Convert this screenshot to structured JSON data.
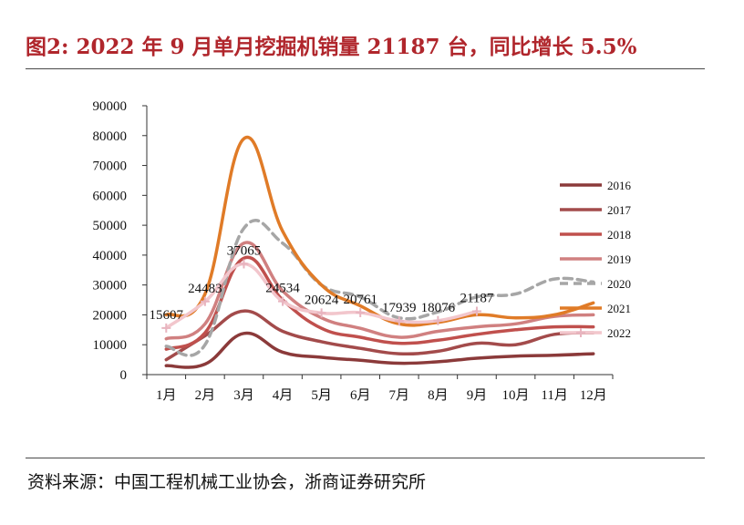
{
  "header": {
    "title": "图2:   2022 年 9 月单月挖掘机销量 21187 台，同比增长 5.5%"
  },
  "footer": {
    "source": "资料来源：中国工程机械工业协会，浙商证券研究所"
  },
  "chart_data": {
    "type": "line",
    "title": "2022 年 9 月单月挖掘机销量 21187 台，同比增长 5.5%",
    "xlabel": "",
    "ylabel": "",
    "ylim": [
      0,
      90000
    ],
    "yticks": [
      0,
      10000,
      20000,
      30000,
      40000,
      50000,
      60000,
      70000,
      80000,
      90000
    ],
    "categories": [
      "1月",
      "2月",
      "3月",
      "4月",
      "5月",
      "6月",
      "7月",
      "8月",
      "9月",
      "10月",
      "11月",
      "12月"
    ],
    "legend_position": "right",
    "series": [
      {
        "name": "2016",
        "color": "#8b3a3a",
        "dash": false,
        "marker": "none",
        "values": [
          3000,
          3500,
          13800,
          7500,
          5800,
          4800,
          3800,
          4300,
          5500,
          6200,
          6500,
          7000
        ]
      },
      {
        "name": "2017",
        "color": "#a34b4b",
        "dash": false,
        "marker": "none",
        "values": [
          5000,
          13000,
          21300,
          14500,
          11000,
          8800,
          7000,
          7800,
          10500,
          10000,
          13500,
          14000
        ]
      },
      {
        "name": "2018",
        "color": "#c0504d",
        "dash": false,
        "marker": "none",
        "values": [
          8500,
          14000,
          39000,
          25000,
          15500,
          12500,
          10500,
          11500,
          13500,
          15000,
          16000,
          16000
        ]
      },
      {
        "name": "2019",
        "color": "#d08080",
        "dash": false,
        "marker": "none",
        "values": [
          12000,
          17000,
          44000,
          28000,
          19000,
          15500,
          12500,
          14500,
          16000,
          17000,
          19500,
          20000
        ]
      },
      {
        "name": "2020",
        "color": "#a6a6a6",
        "dash": true,
        "marker": "none",
        "values": [
          9500,
          10000,
          49000,
          44000,
          30000,
          26000,
          19000,
          21000,
          26000,
          27000,
          32000,
          31000
        ]
      },
      {
        "name": "2021",
        "color": "#e07b27",
        "dash": false,
        "marker": "none",
        "values": [
          20000,
          27000,
          79000,
          48000,
          30000,
          23000,
          17000,
          17500,
          20000,
          19000,
          20000,
          24000
        ]
      },
      {
        "name": "2022",
        "color": "#f2c6cc",
        "dash": false,
        "marker": "plus",
        "marker_color": "#e8b4bf",
        "values": [
          15607,
          24483,
          37065,
          24534,
          20624,
          20761,
          17939,
          18076,
          21187,
          null,
          null,
          null
        ]
      }
    ],
    "data_labels": {
      "series": "2022",
      "values": [
        "15607",
        "24483",
        "37065",
        "24534",
        "20624",
        "20761",
        "17939",
        "18076",
        "21187"
      ]
    }
  }
}
